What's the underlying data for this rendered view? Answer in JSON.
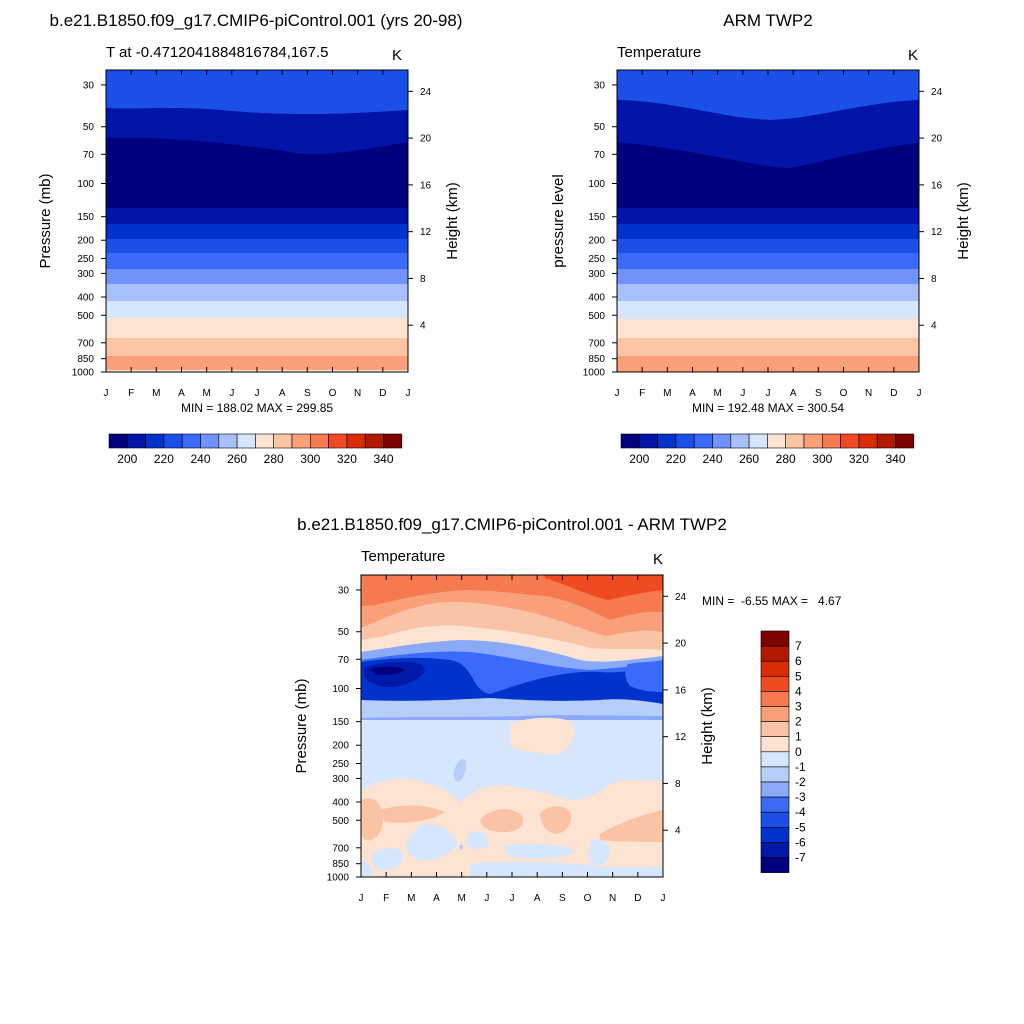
{
  "shared": {
    "months": [
      "J",
      "F",
      "M",
      "A",
      "M",
      "J",
      "J",
      "A",
      "S",
      "O",
      "N",
      "D",
      "J"
    ],
    "pressure_ticks": [
      30,
      50,
      70,
      100,
      150,
      200,
      250,
      300,
      400,
      500,
      700,
      850,
      1000
    ],
    "height_ticks": [
      24,
      20,
      16,
      12,
      8,
      4
    ],
    "colorbar_levels": [
      200,
      220,
      240,
      260,
      280,
      300,
      320,
      340
    ],
    "temp_colors": [
      "#00007f",
      "#0015a8",
      "#0033cc",
      "#1a4fe8",
      "#3a6af6",
      "#6f93f8",
      "#a8c0fa",
      "#d6e6fc",
      "#fde3d1",
      "#fbc5a4",
      "#f9a07a",
      "#f57a50",
      "#ef4a22",
      "#d92c07",
      "#b21a00",
      "#7f0000"
    ],
    "diff_colors": [
      "#00007f",
      "#0019a8",
      "#0033cc",
      "#1a4fe8",
      "#3b6bf6",
      "#8aaaf8",
      "#b7cdfa",
      "#d6e6fc",
      "#fde3d1",
      "#fbc3a5",
      "#f9a07a",
      "#f57a50",
      "#ef4a22",
      "#d92c07",
      "#b21a00",
      "#7f0000"
    ],
    "diff_levels": [
      "7",
      "6",
      "5",
      "4",
      "3",
      "2",
      "1",
      "0",
      "-1",
      "-2",
      "-3",
      "-4",
      "-5",
      "-6",
      "-7"
    ]
  },
  "panel_model": {
    "title": "b.e21.B1850.f09_g17.CMIP6-piControl.001 (yrs 20-98)",
    "left_label": "T at -0.4712041884816784,167.5",
    "units": "K",
    "ylabel": "Pressure (mb)",
    "rlabel": "Height (km)",
    "stats": "MIN = 188.02 MAX = 299.85"
  },
  "panel_obs": {
    "title": "ARM TWP2",
    "left_label": "Temperature",
    "units": "K",
    "ylabel": "pressure level",
    "rlabel": "Height (km)",
    "stats": "MIN = 192.48 MAX = 300.54"
  },
  "panel_diff": {
    "title": "b.e21.B1850.f09_g17.CMIP6-piControl.001 - ARM TWP2",
    "left_label": "Temperature",
    "units": "K",
    "ylabel": "Pressure (mb)",
    "rlabel": "Height (km)",
    "stats": "MIN =  -6.55 MAX =   4.67"
  },
  "chart_data": [
    {
      "type": "heatmap",
      "title": "b.e21.B1850.f09_g17.CMIP6-piControl.001 (yrs 20-98)",
      "subtitle": "T at -0.4712041884816784,167.5",
      "xlabel": "",
      "ylabel": "Pressure (mb)",
      "y2label": "Height (km)",
      "x": [
        "J",
        "F",
        "M",
        "A",
        "M",
        "J",
        "J",
        "A",
        "S",
        "O",
        "N",
        "D",
        "J"
      ],
      "y_pressure": [
        30,
        50,
        70,
        100,
        150,
        200,
        250,
        300,
        400,
        500,
        700,
        850,
        1000
      ],
      "y_height_km": [
        24,
        20,
        16,
        12,
        8,
        4
      ],
      "bands": [
        {
          "from": 1000,
          "to": 850,
          "value": 295
        },
        {
          "from": 850,
          "to": 700,
          "value": 290
        },
        {
          "from": 700,
          "to": 550,
          "value": 283
        },
        {
          "from": 550,
          "to": 450,
          "value": 275
        },
        {
          "from": 450,
          "to": 360,
          "value": 265
        },
        {
          "from": 360,
          "to": 290,
          "value": 255
        },
        {
          "from": 290,
          "to": 240,
          "value": 245
        },
        {
          "from": 240,
          "to": 190,
          "value": 235
        },
        {
          "from": 190,
          "to": 160,
          "value": 225
        },
        {
          "from": 160,
          "to": 130,
          "value": 215
        },
        {
          "from": 130,
          "to": 60,
          "value": 195
        },
        {
          "from": 60,
          "to": 42,
          "value": 205
        },
        {
          "from": 42,
          "to": 25,
          "value": 215
        }
      ],
      "min": 188.02,
      "max": 299.85,
      "units": "K",
      "colorbar": [
        200,
        220,
        240,
        260,
        280,
        300,
        320,
        340
      ]
    },
    {
      "type": "heatmap",
      "title": "ARM TWP2",
      "subtitle": "Temperature",
      "xlabel": "",
      "ylabel": "pressure level",
      "y2label": "Height (km)",
      "x": [
        "J",
        "F",
        "M",
        "A",
        "M",
        "J",
        "J",
        "A",
        "S",
        "O",
        "N",
        "D",
        "J"
      ],
      "y_pressure": [
        30,
        50,
        70,
        100,
        150,
        200,
        250,
        300,
        400,
        500,
        700,
        850,
        1000
      ],
      "y_height_km": [
        24,
        20,
        16,
        12,
        8,
        4
      ],
      "bands": [
        {
          "from": 1000,
          "to": 850,
          "value": 296
        },
        {
          "from": 850,
          "to": 700,
          "value": 291
        },
        {
          "from": 700,
          "to": 560,
          "value": 284
        },
        {
          "from": 560,
          "to": 450,
          "value": 276
        },
        {
          "from": 450,
          "to": 360,
          "value": 266
        },
        {
          "from": 360,
          "to": 290,
          "value": 256
        },
        {
          "from": 290,
          "to": 240,
          "value": 246
        },
        {
          "from": 240,
          "to": 190,
          "value": 236
        },
        {
          "from": 190,
          "to": 160,
          "value": 226
        },
        {
          "from": 160,
          "to": 130,
          "value": 216
        },
        {
          "from": 130,
          "to": 62,
          "value": 196
        },
        {
          "from": 62,
          "to": 42,
          "value": 206
        },
        {
          "from": 42,
          "to": 25,
          "value": 216
        }
      ],
      "min": 192.48,
      "max": 300.54,
      "units": "K",
      "colorbar": [
        200,
        220,
        240,
        260,
        280,
        300,
        320,
        340
      ]
    },
    {
      "type": "heatmap",
      "title": "b.e21.B1850.f09_g17.CMIP6-piControl.001 - ARM TWP2",
      "subtitle": "Temperature",
      "xlabel": "",
      "ylabel": "Pressure (mb)",
      "y2label": "Height (km)",
      "x": [
        "J",
        "F",
        "M",
        "A",
        "M",
        "J",
        "J",
        "A",
        "S",
        "O",
        "N",
        "D",
        "J"
      ],
      "y_pressure": [
        30,
        50,
        70,
        100,
        150,
        200,
        250,
        300,
        400,
        500,
        700,
        850,
        1000
      ],
      "y_height_km": [
        24,
        20,
        16,
        12,
        8,
        4
      ],
      "bands": [
        {
          "from": 1000,
          "to": 600,
          "value": 0.5
        },
        {
          "from": 600,
          "to": 130,
          "value": -0.5
        },
        {
          "from": 130,
          "to": 105,
          "value": -2.5
        },
        {
          "from": 105,
          "to": 62,
          "value": -5
        },
        {
          "from": 62,
          "to": 48,
          "value": -1.5
        },
        {
          "from": 48,
          "to": 25,
          "value": 2.5
        }
      ],
      "min": -6.55,
      "max": 4.67,
      "units": "K",
      "colorbar": [
        "7",
        "6",
        "5",
        "4",
        "3",
        "2",
        "1",
        "0",
        "-1",
        "-2",
        "-3",
        "-4",
        "-5",
        "-6",
        "-7"
      ]
    }
  ]
}
